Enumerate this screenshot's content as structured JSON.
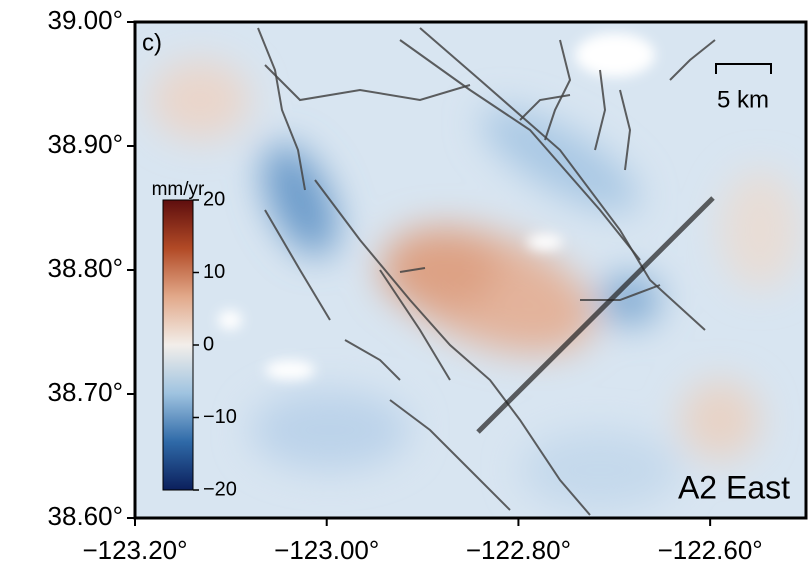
{
  "map": {
    "panel_label": "c)",
    "title": "A2 East",
    "xlim": [
      -123.2,
      -122.5
    ],
    "ylim": [
      38.6,
      39.0
    ],
    "xticks": [
      {
        "value": -123.2,
        "label": "−123.20°"
      },
      {
        "value": -123.0,
        "label": "−123.00°"
      },
      {
        "value": -122.8,
        "label": "−122.80°"
      },
      {
        "value": -122.6,
        "label": "−122.60°"
      }
    ],
    "yticks": [
      {
        "value": 38.6,
        "label": "38.60°"
      },
      {
        "value": 38.7,
        "label": "38.70°"
      },
      {
        "value": 38.8,
        "label": "38.80°"
      },
      {
        "value": 38.9,
        "label": "38.90°"
      },
      {
        "value": 39.0,
        "label": "39.00°"
      }
    ],
    "scale_bar": {
      "label": "5 km"
    },
    "colorbar": {
      "label": "mm/yr",
      "lim": [
        -20,
        20
      ],
      "ticks": [
        {
          "value": -20,
          "label": "−20"
        },
        {
          "value": -10,
          "label": "−10"
        },
        0,
        10,
        20
      ],
      "colors": [
        "#0b1f5c",
        "#2f6aa8",
        "#9fc3e0",
        "#f2eeea",
        "#e2a98a",
        "#b24a26",
        "#5e0e0e"
      ]
    }
  }
}
